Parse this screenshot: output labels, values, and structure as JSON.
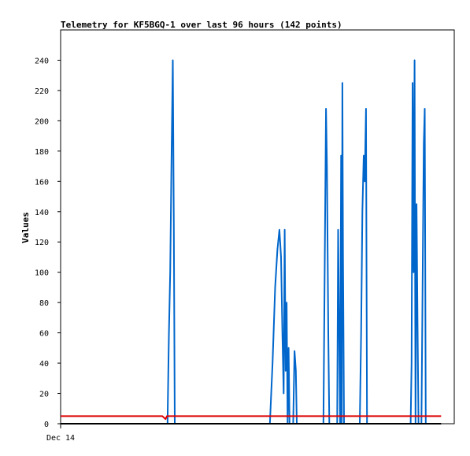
{
  "chart_data": {
    "type": "line",
    "title": "Telemetry for KF5BGQ-1 over last 96 hours (142 points)",
    "xlabel": "",
    "ylabel": "Values",
    "x_tick_labels": [
      {
        "x": 0,
        "label": "Dec 14"
      }
    ],
    "xlim": [
      0,
      120
    ],
    "ylim": [
      0,
      260
    ],
    "y_ticks": [
      0,
      20,
      40,
      60,
      80,
      100,
      120,
      140,
      160,
      180,
      200,
      220,
      240
    ],
    "grid": false,
    "legend": "none",
    "colors": {
      "blue": "#0066cc",
      "red": "#dd0000",
      "black": "#000000"
    },
    "series": [
      {
        "color": "#0066cc",
        "points": [
          [
            32.6,
            0
          ],
          [
            33.0,
            58
          ],
          [
            33.4,
            100
          ],
          [
            33.8,
            172
          ],
          [
            34.2,
            240
          ],
          [
            34.5,
            130
          ],
          [
            34.8,
            0
          ],
          [
            63.8,
            0
          ],
          [
            64.6,
            40
          ],
          [
            65.4,
            90
          ],
          [
            66.1,
            115
          ],
          [
            66.7,
            128
          ],
          [
            67.2,
            110
          ],
          [
            67.6,
            60
          ],
          [
            68.0,
            20
          ],
          [
            68.3,
            128
          ],
          [
            68.6,
            35
          ],
          [
            68.9,
            80
          ],
          [
            69.2,
            0
          ],
          [
            69.5,
            50
          ],
          [
            69.8,
            0
          ],
          [
            70.9,
            0
          ],
          [
            71.3,
            48
          ],
          [
            71.7,
            35
          ],
          [
            72.0,
            0
          ],
          [
            80.1,
            0
          ],
          [
            80.5,
            100
          ],
          [
            80.9,
            208
          ],
          [
            81.2,
            170
          ],
          [
            81.6,
            60
          ],
          [
            81.9,
            0
          ],
          [
            84.3,
            0
          ],
          [
            84.6,
            128
          ],
          [
            84.9,
            60
          ],
          [
            85.2,
            0
          ],
          [
            85.5,
            177
          ],
          [
            85.7,
            0
          ],
          [
            85.9,
            225
          ],
          [
            86.1,
            110
          ],
          [
            86.4,
            0
          ],
          [
            91.2,
            0
          ],
          [
            91.6,
            60
          ],
          [
            92.0,
            140
          ],
          [
            92.4,
            177
          ],
          [
            92.7,
            160
          ],
          [
            93.1,
            208
          ],
          [
            93.4,
            0
          ],
          [
            106.7,
            0
          ],
          [
            107.0,
            40
          ],
          [
            107.3,
            225
          ],
          [
            107.6,
            100
          ],
          [
            107.9,
            240
          ],
          [
            108.2,
            0
          ],
          [
            108.5,
            145
          ],
          [
            108.8,
            70
          ],
          [
            109.1,
            0
          ],
          [
            110.0,
            0
          ],
          [
            110.4,
            105
          ],
          [
            110.7,
            185
          ],
          [
            111.0,
            208
          ],
          [
            111.3,
            0
          ],
          [
            111.6,
            0
          ]
        ]
      },
      {
        "color": "#dd0000",
        "points": [
          [
            0,
            5
          ],
          [
            31.0,
            5
          ],
          [
            32.0,
            3
          ],
          [
            32.4,
            5
          ],
          [
            116,
            5
          ]
        ]
      },
      {
        "color": "#000000",
        "points": [
          [
            0,
            0
          ],
          [
            116,
            0
          ]
        ]
      }
    ]
  }
}
